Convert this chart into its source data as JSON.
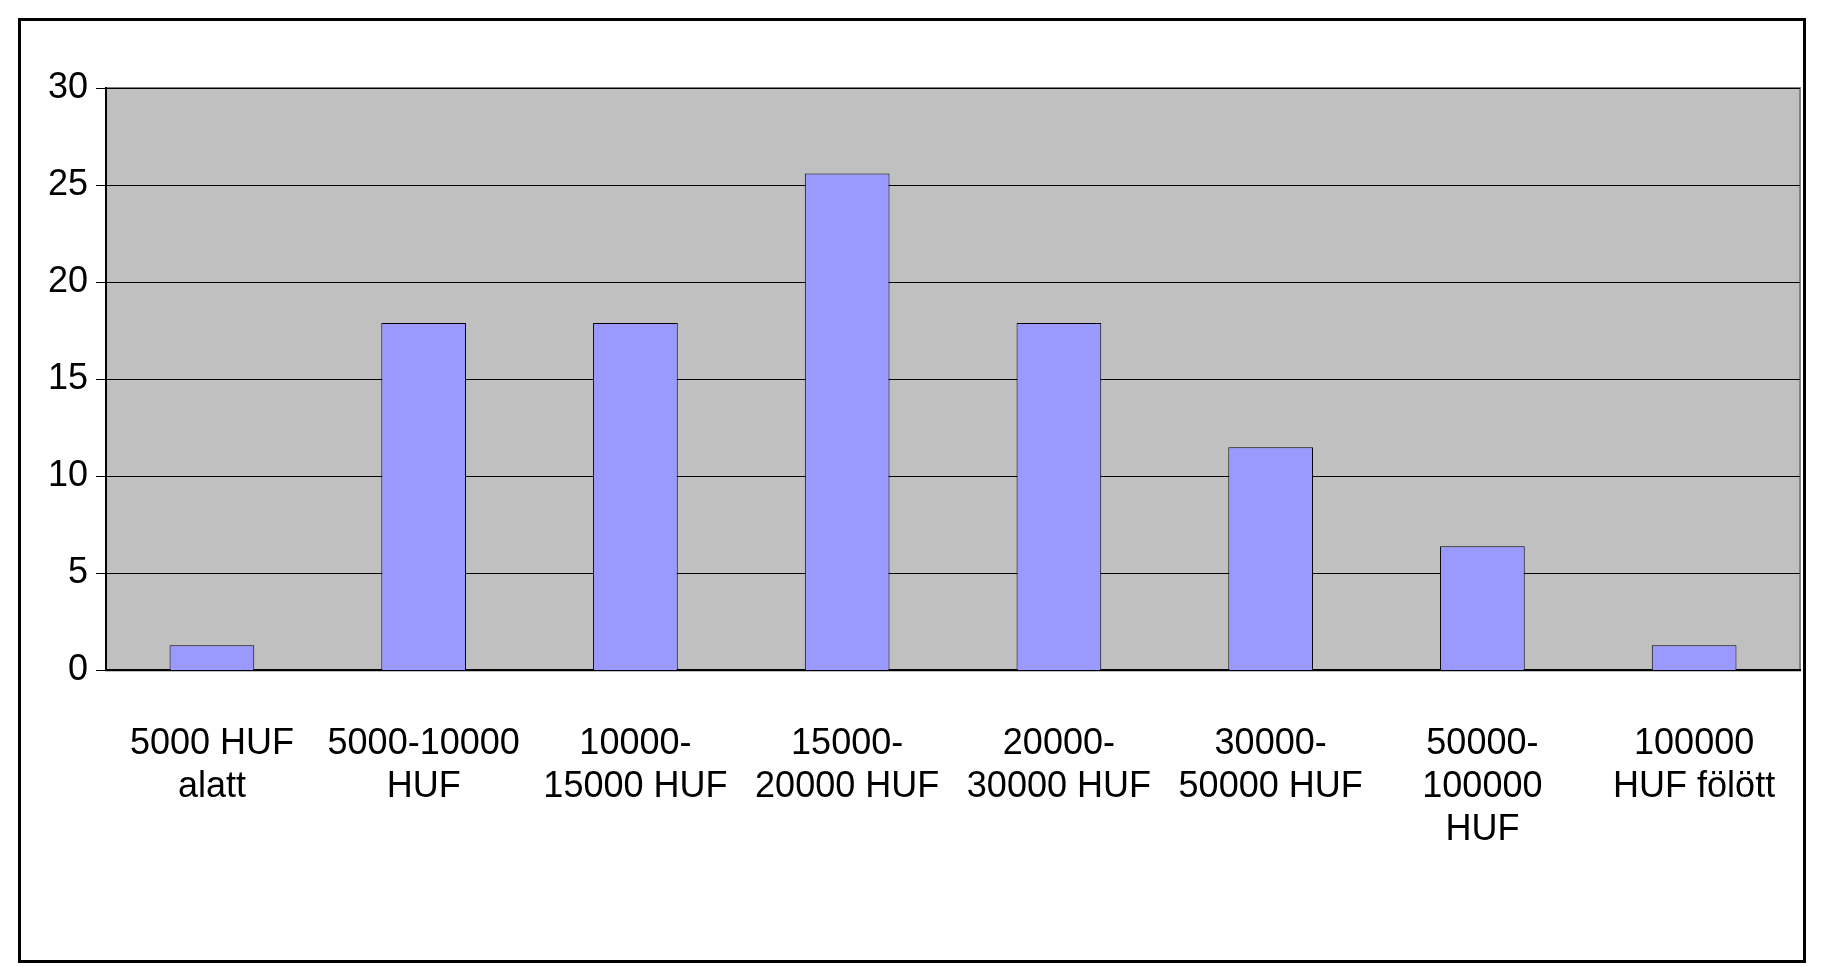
{
  "chart_data": {
    "type": "bar",
    "categories": [
      "5000 HUF\nalatt",
      "5000-10000\nHUF",
      "10000-\n15000 HUF",
      "15000-\n20000 HUF",
      "20000-\n30000 HUF",
      "30000-\n50000 HUF",
      "50000-\n100000\nHUF",
      "100000\nHUF fölött"
    ],
    "values": [
      1.3,
      17.9,
      17.9,
      25.6,
      17.9,
      11.5,
      6.4,
      1.3
    ],
    "color": "#9999ff",
    "ylim": [
      0,
      30
    ],
    "yticks": [
      0,
      5,
      10,
      15,
      20,
      25,
      30
    ],
    "grid": "y",
    "legend": false
  }
}
